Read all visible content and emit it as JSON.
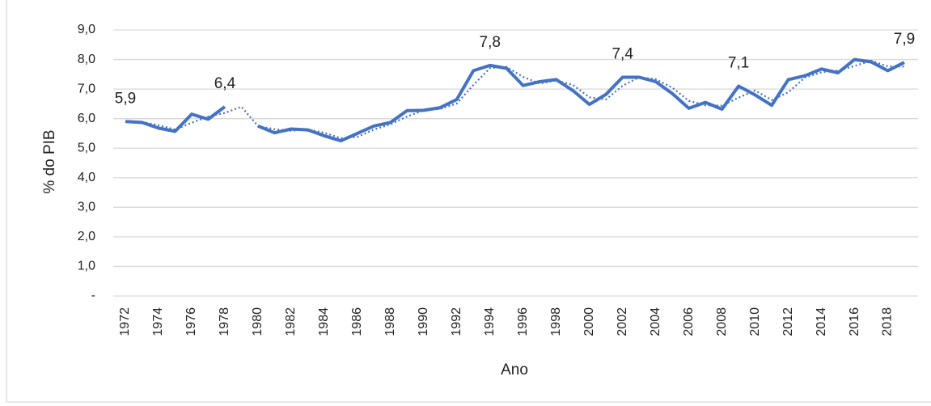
{
  "chart_data": {
    "type": "line",
    "ylabel": "% do PIB",
    "xlabel": "Ano",
    "categories": [
      "1972",
      null,
      "1974",
      null,
      "1976",
      null,
      "1978",
      null,
      "1980",
      null,
      "1982",
      null,
      "1984",
      null,
      "1986",
      null,
      "1988",
      null,
      "1990",
      null,
      "1992",
      null,
      "1994",
      null,
      "1996",
      null,
      "1998",
      null,
      "2000",
      null,
      "2002",
      null,
      "2004",
      null,
      "2006",
      null,
      "2008",
      null,
      "2010",
      null,
      "2012",
      null,
      "2014",
      null,
      "2016",
      null,
      "2018",
      null
    ],
    "series": [
      {
        "color": "#4472c4",
        "style": "solid",
        "values": [
          5.9,
          5.87,
          5.68,
          5.57,
          6.15,
          5.98,
          6.4,
          null,
          5.75,
          5.52,
          5.65,
          5.62,
          5.42,
          5.25,
          5.5,
          5.75,
          5.87,
          6.27,
          6.28,
          6.37,
          6.65,
          7.62,
          7.8,
          7.7,
          7.12,
          7.25,
          7.32,
          6.95,
          6.48,
          6.82,
          7.4,
          7.4,
          7.25,
          6.85,
          6.35,
          6.55,
          6.32,
          7.1,
          6.8,
          6.45,
          7.32,
          7.45,
          7.68,
          7.55,
          8.0,
          7.92,
          7.62,
          7.9
        ],
        "value_labels": [
          "5,9",
          null,
          null,
          null,
          null,
          null,
          "6,4",
          null,
          null,
          null,
          null,
          null,
          null,
          null,
          null,
          null,
          null,
          null,
          null,
          null,
          null,
          null,
          "7,8",
          null,
          null,
          null,
          null,
          null,
          null,
          null,
          "7,4",
          null,
          null,
          null,
          null,
          null,
          null,
          "7,1",
          null,
          null,
          null,
          null,
          null,
          null,
          null,
          null,
          null,
          "7,9"
        ]
      },
      {
        "color": "#4472c4",
        "style": "dotted",
        "values": [
          null,
          5.89,
          5.78,
          5.63,
          5.86,
          6.07,
          6.19,
          6.4,
          5.75,
          5.64,
          5.59,
          5.64,
          5.52,
          5.34,
          5.38,
          5.63,
          5.81,
          6.07,
          6.28,
          6.33,
          6.51,
          7.14,
          7.71,
          7.75,
          7.41,
          7.19,
          7.29,
          7.14,
          6.72,
          6.65,
          7.11,
          7.4,
          7.33,
          7.05,
          6.6,
          6.45,
          6.44,
          6.71,
          6.95,
          6.63,
          6.89,
          7.39,
          7.57,
          7.62,
          7.78,
          7.96,
          7.77,
          7.76
        ]
      }
    ],
    "ylim": [
      0,
      9
    ],
    "yticks": [
      {
        "value": 0,
        "label": "-"
      },
      {
        "value": 1,
        "label": "1,0"
      },
      {
        "value": 2,
        "label": "2,0"
      },
      {
        "value": 3,
        "label": "3,0"
      },
      {
        "value": 4,
        "label": "4,0"
      },
      {
        "value": 5,
        "label": "5,0"
      },
      {
        "value": 6,
        "label": "6,0"
      },
      {
        "value": 7,
        "label": "7,0"
      },
      {
        "value": 8,
        "label": "8,0"
      },
      {
        "value": 9,
        "label": "9,0"
      }
    ],
    "grid": true
  }
}
